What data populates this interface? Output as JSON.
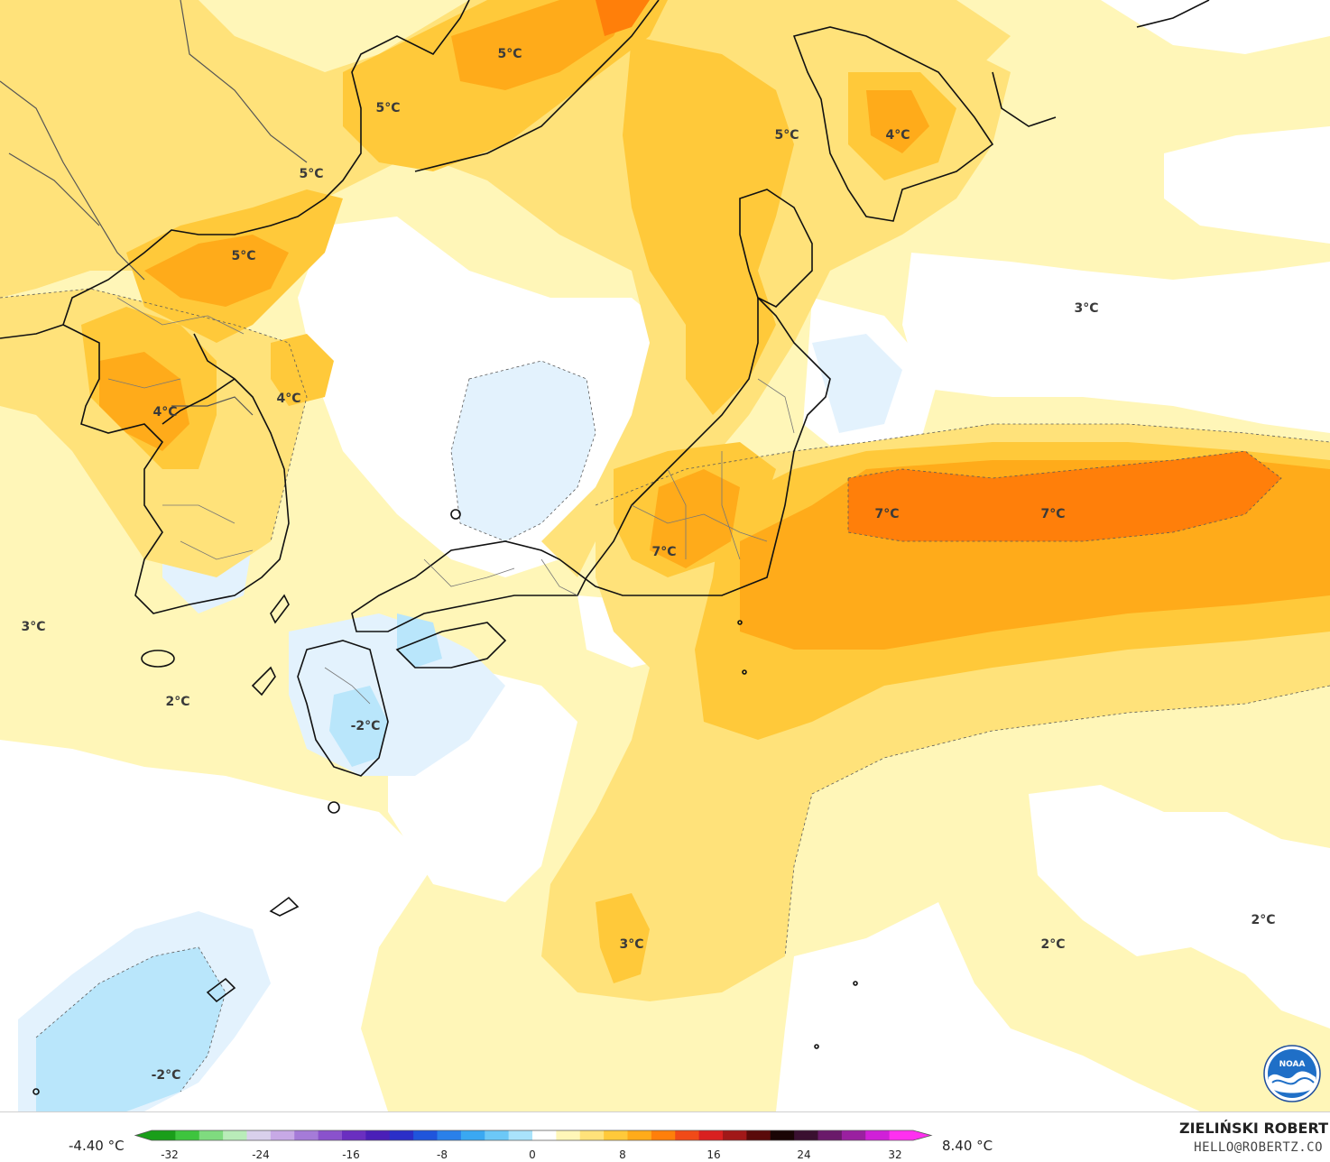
{
  "map": {
    "temperature_labels": [
      {
        "text": "5°C"
      },
      {
        "text": "5°C"
      },
      {
        "text": "5°C"
      },
      {
        "text": "5°C"
      },
      {
        "text": "4°C"
      },
      {
        "text": "5°C"
      },
      {
        "text": "4°C"
      },
      {
        "text": "4°C"
      },
      {
        "text": "3°C"
      },
      {
        "text": "3°C"
      },
      {
        "text": "7°C"
      },
      {
        "text": "7°C"
      },
      {
        "text": "7°C"
      },
      {
        "text": "2°C"
      },
      {
        "text": "-2°C"
      },
      {
        "text": "3°C"
      },
      {
        "text": "2°C"
      },
      {
        "text": "2°C"
      },
      {
        "text": "-2°C"
      }
    ]
  },
  "legend": {
    "min_value": "-4.40 °C",
    "max_value": "8.40 °C",
    "ticks": [
      "-32",
      "-24",
      "-16",
      "-8",
      "0",
      "8",
      "16",
      "24",
      "32"
    ],
    "colors": [
      "#1a9e1a",
      "#3ec43e",
      "#7fdb7f",
      "#b9ecb9",
      "#d9d0ec",
      "#c7a9e6",
      "#a57bd8",
      "#8a52cc",
      "#6a2fc0",
      "#4a1fb8",
      "#2b2fc8",
      "#1f55dc",
      "#2a80ea",
      "#3aa8f2",
      "#6cc8f7",
      "#a9e3fb",
      "#ffffff",
      "#fff6b8",
      "#ffe27a",
      "#ffc93a",
      "#ffab1a",
      "#ff7f0a",
      "#f14a18",
      "#d92020",
      "#a11818",
      "#5a0a0a",
      "#1a0505",
      "#3a1030",
      "#6a1a6a",
      "#9a20a0",
      "#d020d8",
      "#ff30f0"
    ]
  },
  "credit": {
    "author": "ZIELIŃSKI ROBERT",
    "email": "HELLO@ROBERTZ.CO",
    "logo_text": "NOAA"
  },
  "palette": {
    "land_outline": "#111111",
    "border_outline": "#555555",
    "pale_yellow": "#fff6b8",
    "yellow": "#ffe27a",
    "gold": "#ffc93a",
    "orange": "#ffab1a",
    "deep_orange": "#ff7f0a",
    "white": "#ffffff",
    "pale_blue": "#e3f2fd",
    "light_blue": "#b9e6fb"
  }
}
